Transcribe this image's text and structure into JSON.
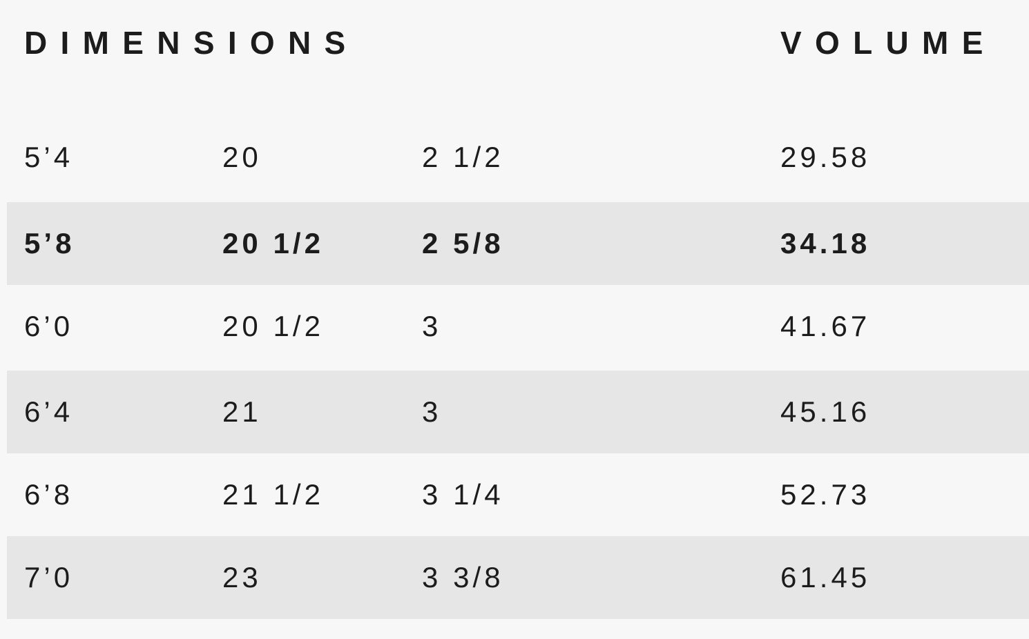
{
  "headers": {
    "dimensions": "DIMENSIONS",
    "volume": "VOLUME"
  },
  "colors": {
    "background": "#f7f7f7",
    "stripe": "#e6e6e6",
    "text": "#1c1c1c"
  },
  "rows": [
    {
      "length": "5’4",
      "width": "20",
      "thickness": "2 1/2",
      "volume": "29.58",
      "highlighted": false
    },
    {
      "length": "5’8",
      "width": "20 1/2",
      "thickness": "2 5/8",
      "volume": "34.18",
      "highlighted": true
    },
    {
      "length": "6’0",
      "width": "20 1/2",
      "thickness": "3",
      "volume": "41.67",
      "highlighted": false
    },
    {
      "length": "6’4",
      "width": "21",
      "thickness": "3",
      "volume": "45.16",
      "highlighted": false
    },
    {
      "length": "6’8",
      "width": "21 1/2",
      "thickness": "3 1/4",
      "volume": "52.73",
      "highlighted": false
    },
    {
      "length": "7’0",
      "width": "23",
      "thickness": "3 3/8",
      "volume": "61.45",
      "highlighted": false
    }
  ]
}
